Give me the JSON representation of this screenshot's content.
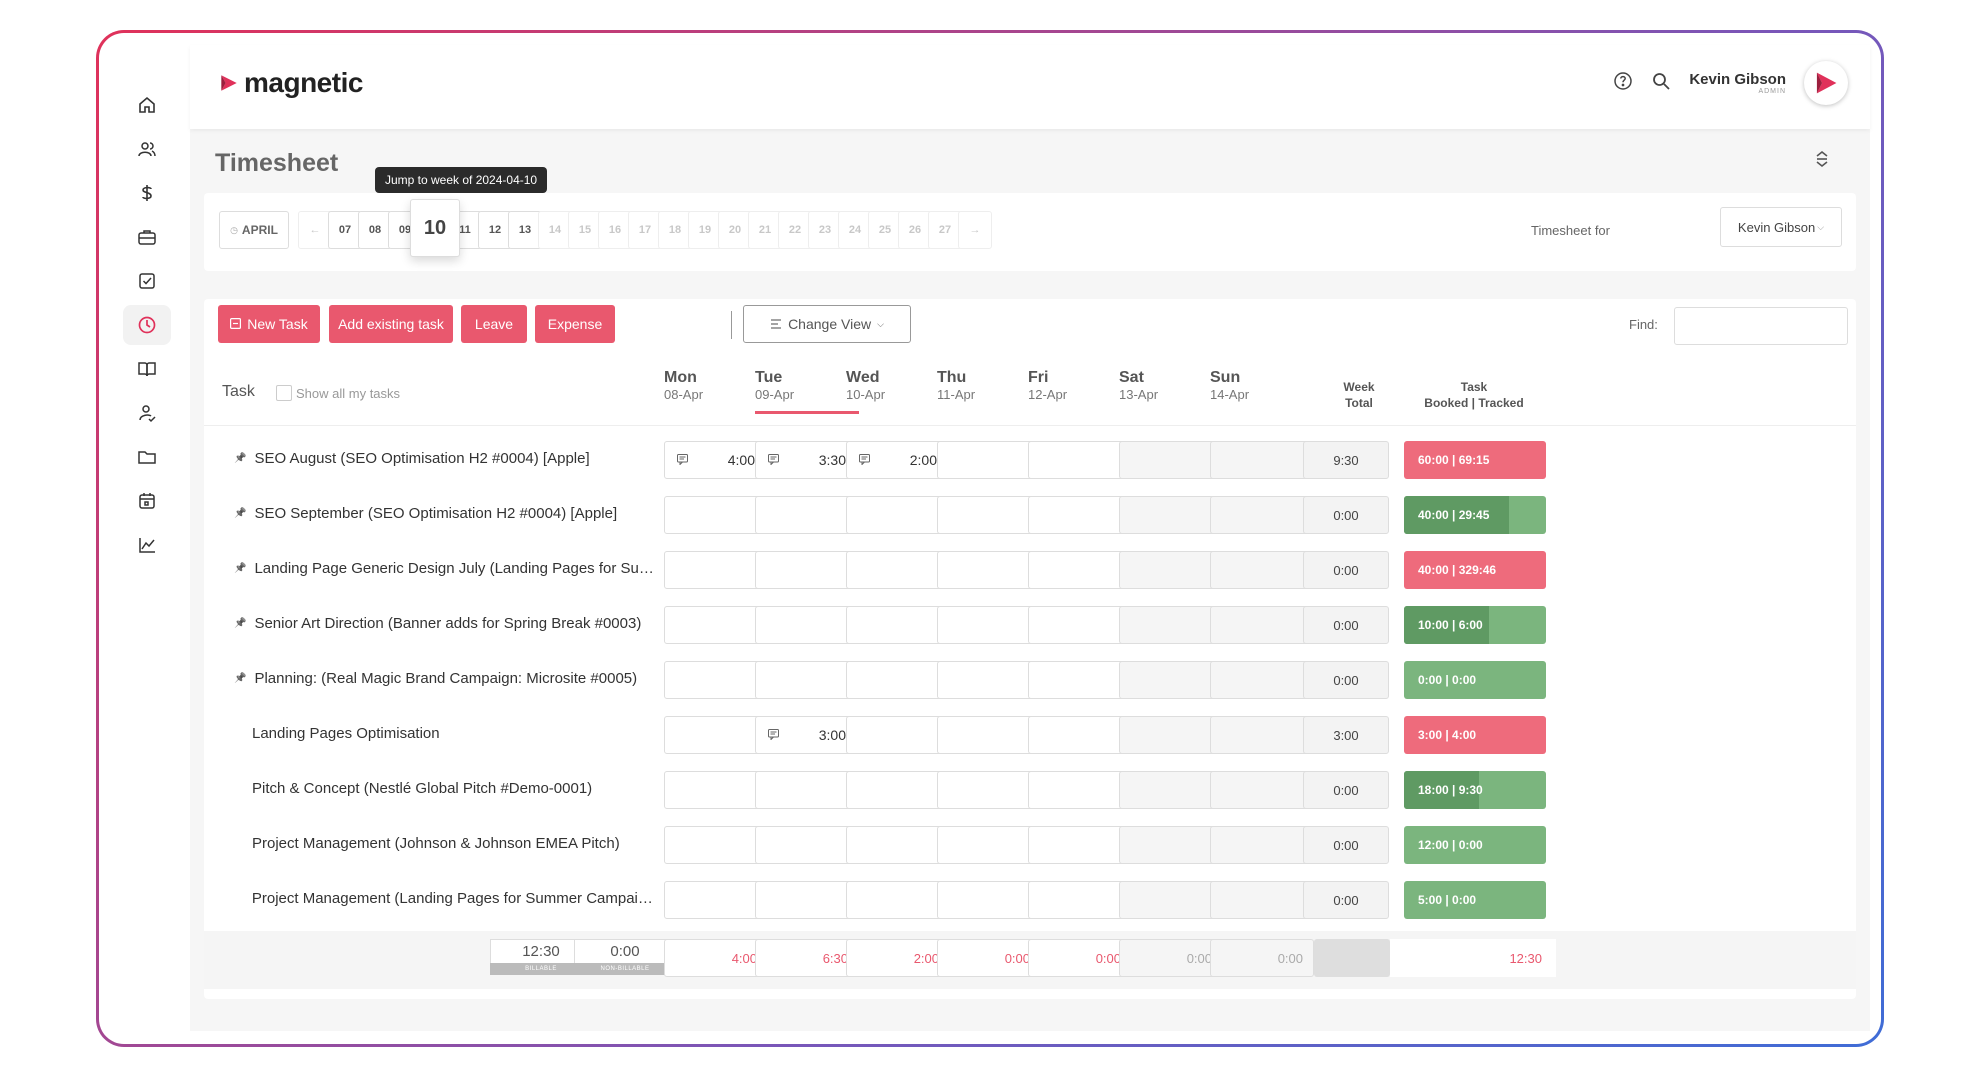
{
  "app": {
    "brand": "magnetic",
    "page_title": "Timesheet"
  },
  "user": {
    "name": "Kevin Gibson",
    "role": "ADMIN"
  },
  "tooltip": "Jump to week of 2024-04-10",
  "weeks": {
    "month_label": "APRIL",
    "items": [
      "07",
      "08",
      "09",
      "10",
      "11",
      "12",
      "13",
      "14",
      "15",
      "16",
      "17",
      "18",
      "19",
      "20",
      "21",
      "22",
      "23",
      "24",
      "25",
      "26",
      "27"
    ],
    "selected": "10"
  },
  "timesheet_for": {
    "label": "Timesheet for",
    "value": "Kevin Gibson"
  },
  "toolbar": {
    "new_task": "New Task",
    "add_existing": "Add existing task",
    "leave": "Leave",
    "expense": "Expense",
    "change_view": "Change View",
    "find_label": "Find:"
  },
  "table": {
    "task_header": "Task",
    "show_all": "Show all my tasks",
    "days": [
      {
        "name": "Mon",
        "date": "08-Apr"
      },
      {
        "name": "Tue",
        "date": "09-Apr"
      },
      {
        "name": "Wed",
        "date": "10-Apr"
      },
      {
        "name": "Thu",
        "date": "11-Apr"
      },
      {
        "name": "Fri",
        "date": "12-Apr"
      },
      {
        "name": "Sat",
        "date": "13-Apr"
      },
      {
        "name": "Sun",
        "date": "14-Apr"
      }
    ],
    "week_total_header": "Week\nTotal",
    "task_total_header": "Task\nBooked | Tracked",
    "rows": [
      {
        "name": "SEO August (SEO Optimisation H2 #0004) [Apple]",
        "pinned": true,
        "hours": [
          "4:00",
          "3:30",
          "2:00",
          "",
          "",
          "",
          ""
        ],
        "week_total": "9:30",
        "booked_tracked": "60:00 | 69:15",
        "status": "over",
        "tracked_fraction": 1.0
      },
      {
        "name": "SEO September (SEO Optimisation H2 #0004) [Apple]",
        "pinned": true,
        "hours": [
          "",
          "",
          "",
          "",
          "",
          "",
          ""
        ],
        "week_total": "0:00",
        "booked_tracked": "40:00 | 29:45",
        "status": "under",
        "tracked_fraction": 0.74
      },
      {
        "name": "Landing Page Generic Design July (Landing Pages for Summer Campaign)",
        "pinned": true,
        "hours": [
          "",
          "",
          "",
          "",
          "",
          "",
          ""
        ],
        "week_total": "0:00",
        "booked_tracked": "40:00 | 329:46",
        "status": "over",
        "tracked_fraction": 1.0
      },
      {
        "name": "Senior Art Direction (Banner adds for Spring Break #0003)",
        "pinned": true,
        "hours": [
          "",
          "",
          "",
          "",
          "",
          "",
          ""
        ],
        "week_total": "0:00",
        "booked_tracked": "10:00 | 6:00",
        "status": "under",
        "tracked_fraction": 0.6
      },
      {
        "name": "Planning: (Real Magic Brand Campaign: Microsite #0005)",
        "pinned": true,
        "hours": [
          "",
          "",
          "",
          "",
          "",
          "",
          ""
        ],
        "week_total": "0:00",
        "booked_tracked": "0:00 | 0:00",
        "status": "under",
        "tracked_fraction": 0.0
      },
      {
        "name": "Landing Pages Optimisation",
        "pinned": false,
        "hours": [
          "",
          "3:00",
          "",
          "",
          "",
          "",
          ""
        ],
        "week_total": "3:00",
        "booked_tracked": "3:00 | 4:00",
        "status": "over",
        "tracked_fraction": 1.0
      },
      {
        "name": "Pitch & Concept (Nestlé Global Pitch #Demo-0001)",
        "pinned": false,
        "hours": [
          "",
          "",
          "",
          "",
          "",
          "",
          ""
        ],
        "week_total": "0:00",
        "booked_tracked": "18:00 | 9:30",
        "status": "under",
        "tracked_fraction": 0.53
      },
      {
        "name": "Project Management (Johnson & Johnson EMEA Pitch)",
        "pinned": false,
        "hours": [
          "",
          "",
          "",
          "",
          "",
          "",
          ""
        ],
        "week_total": "0:00",
        "booked_tracked": "12:00 | 0:00",
        "status": "under",
        "tracked_fraction": 0.0
      },
      {
        "name": "Project Management (Landing Pages for Summer Campaign)",
        "pinned": false,
        "hours": [
          "",
          "",
          "",
          "",
          "",
          "",
          ""
        ],
        "week_total": "0:00",
        "booked_tracked": "5:00 | 0:00",
        "status": "under",
        "tracked_fraction": 0.0
      }
    ]
  },
  "footer": {
    "billable": {
      "value": "12:30",
      "label": "BILLABLE"
    },
    "non_billable": {
      "value": "0:00",
      "label": "NON-BILLABLE"
    },
    "day_totals": [
      "4:00",
      "6:30",
      "2:00",
      "0:00",
      "0:00",
      "0:00",
      "0:00"
    ],
    "grand_total": "12:30"
  },
  "colors": {
    "accent": "#e9586e",
    "over": "#ee6b7c",
    "under": "#7bb57e",
    "under_dark": "#5f9a63"
  },
  "sidebar": {
    "items": [
      "home-icon",
      "users-icon",
      "dollar-icon",
      "briefcase-icon",
      "checkbox-icon",
      "clock-icon",
      "book-icon",
      "person-icon",
      "folder-icon",
      "calendar-icon",
      "chart-icon"
    ],
    "active": "clock-icon"
  }
}
